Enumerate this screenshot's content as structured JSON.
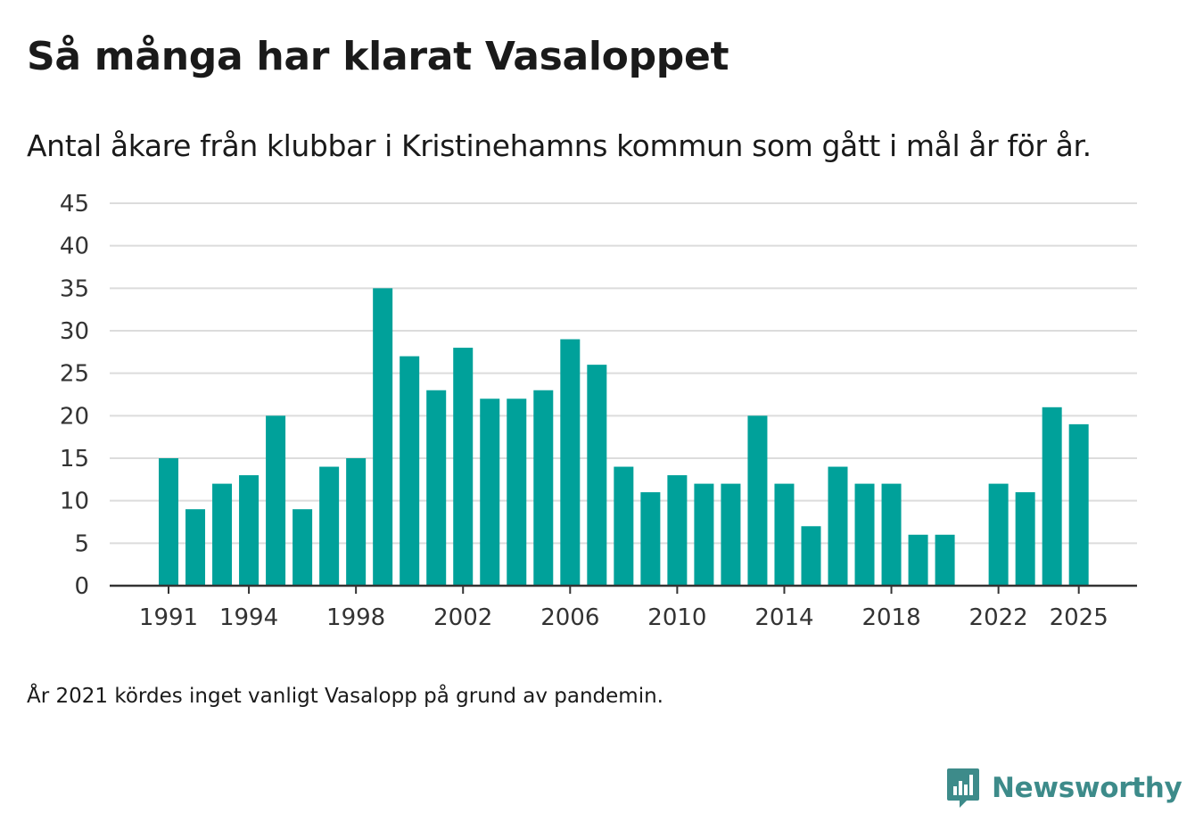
{
  "title": "Så många har klarat Vasaloppet",
  "subtitle": "Antal åkare från klubbar i Kristinehamns kommun som gått i mål år för år.",
  "note": "År 2021 kördes inget vanligt Vasalopp på grund av pandemin.",
  "brand": {
    "name": "Newsworthy",
    "icon": "newsworthy-logo-icon"
  },
  "colors": {
    "bar": "#00a19a",
    "grid": "#dcdcdc",
    "axis": "#333333",
    "brand": "#3d8b8a"
  },
  "chart_data": {
    "type": "bar",
    "title": "Så många har klarat Vasaloppet",
    "xlabel": "",
    "ylabel": "",
    "ylim": [
      0,
      45
    ],
    "yticks": [
      0,
      5,
      10,
      15,
      20,
      25,
      30,
      35,
      40,
      45
    ],
    "xticks": [
      1991,
      1994,
      1998,
      2002,
      2006,
      2010,
      2014,
      2018,
      2022,
      2025
    ],
    "grid": true,
    "categories": [
      1991,
      1992,
      1993,
      1994,
      1995,
      1996,
      1997,
      1998,
      1999,
      2000,
      2001,
      2002,
      2003,
      2004,
      2005,
      2006,
      2007,
      2008,
      2009,
      2010,
      2011,
      2012,
      2013,
      2014,
      2015,
      2016,
      2017,
      2018,
      2019,
      2020,
      2021,
      2022,
      2023,
      2024,
      2025
    ],
    "values": [
      15,
      9,
      12,
      13,
      20,
      9,
      14,
      15,
      35,
      27,
      23,
      28,
      22,
      22,
      23,
      29,
      26,
      14,
      11,
      13,
      12,
      12,
      20,
      12,
      7,
      14,
      12,
      12,
      6,
      6,
      null,
      12,
      11,
      21,
      19
    ]
  }
}
